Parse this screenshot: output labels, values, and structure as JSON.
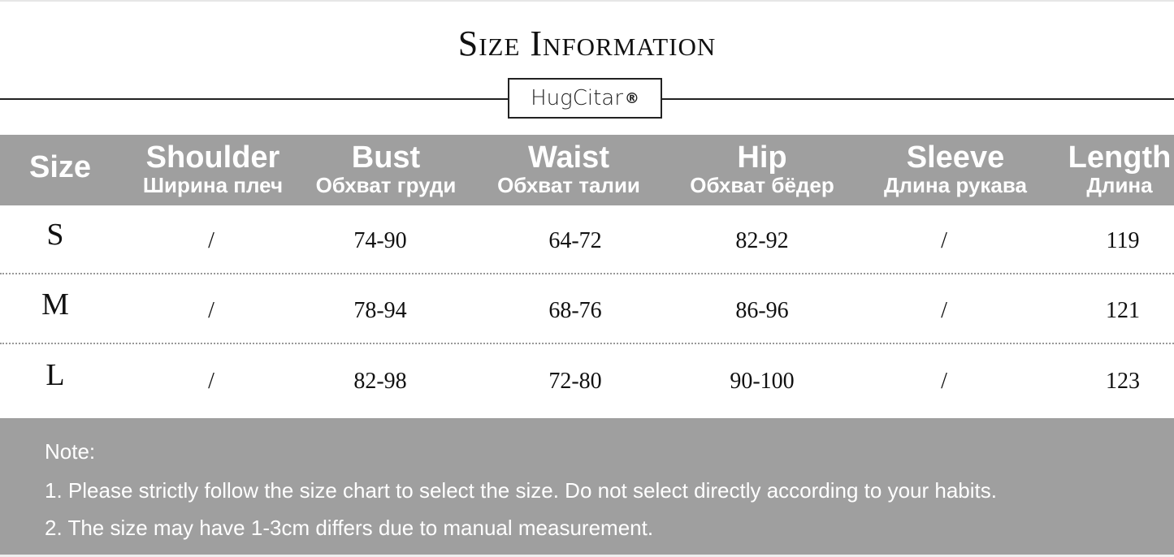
{
  "title": "Size Information",
  "brand": {
    "name": "HugCitar",
    "mark": "®"
  },
  "colors": {
    "band": "#9f9f9f",
    "text_on_band": "#ffffff"
  },
  "table": {
    "headers": [
      {
        "en": "Size",
        "ru": ""
      },
      {
        "en": "Shoulder",
        "ru": "Ширина плеч"
      },
      {
        "en": "Bust",
        "ru": "Обхват груди"
      },
      {
        "en": "Waist",
        "ru": "Обхват талии"
      },
      {
        "en": "Hip",
        "ru": "Обхват бёдер"
      },
      {
        "en": "Sleeve",
        "ru": "Длина рукава"
      },
      {
        "en": "Length",
        "ru": "Длина"
      }
    ],
    "rows": [
      [
        "S",
        "/",
        "74-90",
        "64-72",
        "82-92",
        "/",
        "119"
      ],
      [
        "M",
        "/",
        "78-94",
        "68-76",
        "86-96",
        "/",
        "121"
      ],
      [
        "L",
        "/",
        "82-98",
        "72-80",
        "90-100",
        "/",
        "123"
      ]
    ]
  },
  "note": {
    "heading": "Note:",
    "lines": [
      "1. Please strictly follow the size chart to select the size. Do not select directly according to your habits.",
      "2. The size may have 1-3cm differs due to manual measurement."
    ]
  }
}
